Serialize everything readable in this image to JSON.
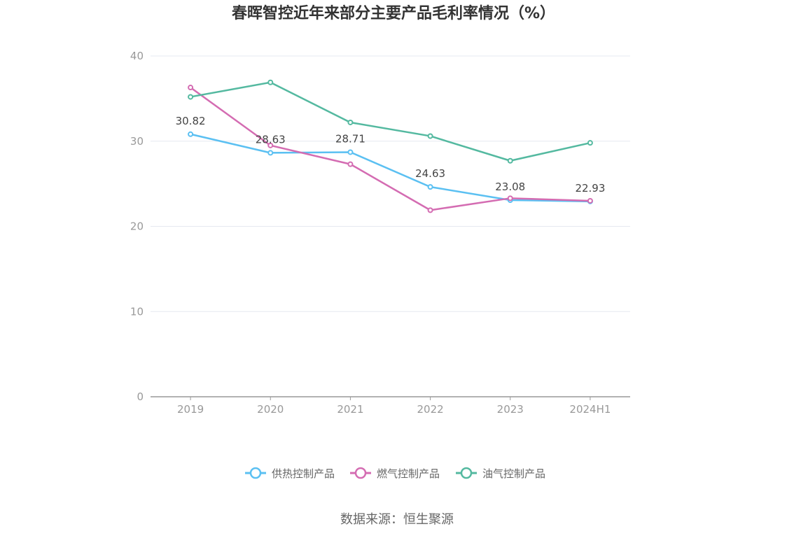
{
  "chart_data": {
    "type": "line",
    "title": "春晖智控近年来部分主要产品毛利率情况（%）",
    "categories": [
      "2019",
      "2020",
      "2021",
      "2022",
      "2023",
      "2024H1"
    ],
    "ylim": [
      0,
      40
    ],
    "yticks": [
      0,
      10,
      20,
      30,
      40
    ],
    "grid": true,
    "legend_position": "bottom",
    "series": [
      {
        "name": "供热控制产品",
        "color": "#5bc0f2",
        "values": [
          30.82,
          28.63,
          28.71,
          24.63,
          23.08,
          22.93
        ],
        "labels": [
          "30.82",
          "28.63",
          "28.71",
          "24.63",
          "23.08",
          "22.93"
        ]
      },
      {
        "name": "燃气控制产品",
        "color": "#d46cb2",
        "values": [
          36.3,
          29.5,
          27.3,
          21.9,
          23.3,
          23.0
        ]
      },
      {
        "name": "油气控制产品",
        "color": "#54b9a0",
        "values": [
          35.2,
          36.9,
          32.2,
          30.6,
          27.7,
          29.8
        ]
      }
    ]
  },
  "source": "数据来源：恒生聚源"
}
